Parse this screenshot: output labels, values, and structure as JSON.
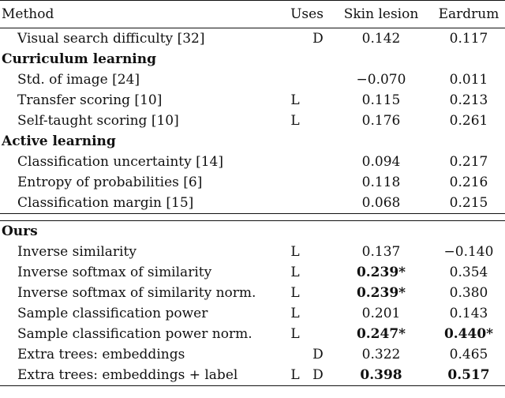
{
  "header": {
    "method": "Method",
    "uses": "Uses",
    "skin": "Skin lesion",
    "ear": "Eardrum"
  },
  "sections": [
    {
      "title": "",
      "rows": [
        {
          "method": "Visual search difficulty [32]",
          "l": "",
          "d": "D",
          "skin": "0.142",
          "ear": "0.117"
        }
      ]
    },
    {
      "title": "Curriculum learning",
      "rows": [
        {
          "method": "Std. of image [24]",
          "l": "",
          "d": "",
          "skin": "−0.070",
          "ear": "0.011"
        },
        {
          "method": "Transfer scoring [10]",
          "l": "L",
          "d": "",
          "skin": "0.115",
          "ear": "0.213"
        },
        {
          "method": "Self-taught scoring [10]",
          "l": "L",
          "d": "",
          "skin": "0.176",
          "ear": "0.261"
        }
      ]
    },
    {
      "title": "Active learning",
      "rows": [
        {
          "method": "Classification uncertainty [14]",
          "l": "",
          "d": "",
          "skin": "0.094",
          "ear": "0.217"
        },
        {
          "method": "Entropy of probabilities [6]",
          "l": "",
          "d": "",
          "skin": "0.118",
          "ear": "0.216"
        },
        {
          "method": "Classification margin [15]",
          "l": "",
          "d": "",
          "skin": "0.068",
          "ear": "0.215"
        }
      ]
    },
    {
      "title": "Ours",
      "rows": [
        {
          "method": "Inverse similarity",
          "l": "L",
          "d": "",
          "skin": "0.137",
          "ear": "−0.140"
        },
        {
          "method": "Inverse softmax of similarity",
          "l": "L",
          "d": "",
          "skin": "0.239*",
          "ear": "0.354",
          "skin_bold": true
        },
        {
          "method": "Inverse softmax of similarity norm.",
          "l": "L",
          "d": "",
          "skin": "0.239*",
          "ear": "0.380",
          "skin_bold": true
        },
        {
          "method": "Sample classification power",
          "l": "L",
          "d": "",
          "skin": "0.201",
          "ear": "0.143"
        },
        {
          "method": "Sample classification power norm.",
          "l": "L",
          "d": "",
          "skin": "0.247*",
          "ear": "0.440*",
          "skin_bold": true,
          "ear_bold": true
        },
        {
          "method": "Extra trees: embeddings",
          "l": "",
          "d": "D",
          "skin": "0.322",
          "ear": "0.465"
        },
        {
          "method": "Extra trees: embeddings + label",
          "l": "L",
          "d": "D",
          "skin": "0.398",
          "ear": "0.517",
          "skin_bold": true,
          "ear_bold": true
        }
      ]
    }
  ]
}
